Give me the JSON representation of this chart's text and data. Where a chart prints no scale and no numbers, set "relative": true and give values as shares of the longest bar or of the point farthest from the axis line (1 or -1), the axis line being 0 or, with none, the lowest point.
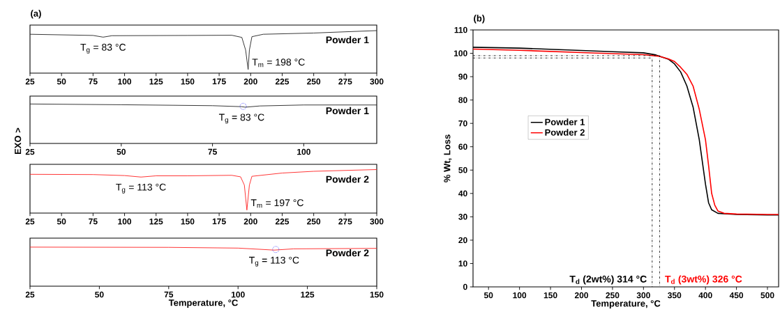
{
  "chart_data": [
    {
      "type": "line",
      "title": "(a)",
      "relative": true,
      "xlim": [
        25,
        300
      ],
      "xticks": [
        25,
        50,
        75,
        100,
        125,
        150,
        175,
        200,
        225,
        250,
        275,
        300
      ],
      "series": [
        {
          "name": "Powder 1",
          "color": "#222222",
          "x": [
            25,
            75,
            83,
            90,
            150,
            185,
            193,
            196,
            198,
            199,
            201,
            210,
            250,
            300
          ],
          "values": [
            0.914,
            0.886,
            0.846,
            0.88,
            0.886,
            0.891,
            0.84,
            0.543,
            0.086,
            0.543,
            0.857,
            0.914,
            0.943,
            1.0
          ]
        }
      ],
      "annotations": [
        {
          "text": "T$_{g}$ = 83 °C",
          "x": 83,
          "y": 0.846
        },
        {
          "text": "T$_{m}$ = 198 °C",
          "x": 198,
          "y": 0.086
        }
      ]
    },
    {
      "type": "line",
      "relative": true,
      "ylabel": "EXO >",
      "xlim": [
        25,
        120
      ],
      "xticks": [
        25,
        50,
        75,
        100
      ],
      "series": [
        {
          "name": "Powder 1",
          "color": "#222222",
          "x": [
            25,
            50,
            75,
            83,
            84,
            88,
            100,
            120
          ],
          "values": [
            1.0,
            0.981,
            0.957,
            0.932,
            0.919,
            0.95,
            0.975,
            0.975
          ]
        },
        {
          "type": "scatter",
          "color": "#3333ff",
          "marker": "circle",
          "line_style": "dotted",
          "x": [
            83.4
          ],
          "values": [
            0.94
          ]
        }
      ],
      "annotations": [
        {
          "text": "T$_{g}$ = 83 °C",
          "x": 83,
          "y": 0.919
        }
      ]
    },
    {
      "type": "line",
      "relative": true,
      "xlim": [
        25,
        300
      ],
      "xticks": [
        25,
        50,
        75,
        100,
        125,
        150,
        175,
        200,
        225,
        250,
        275,
        300
      ],
      "series": [
        {
          "name": "Powder 2",
          "color": "#ff2020",
          "x": [
            25,
            75,
            100,
            113,
            125,
            150,
            185,
            192,
            195,
            197,
            199,
            201,
            225,
            250,
            300
          ],
          "values": [
            0.891,
            0.885,
            0.862,
            0.828,
            0.856,
            0.856,
            0.868,
            0.833,
            0.644,
            0.069,
            0.644,
            0.845,
            0.92,
            0.96,
            1.0
          ]
        }
      ],
      "annotations": [
        {
          "text": "T$_{g}$ = 113 °C",
          "x": 113,
          "y": 0.828
        },
        {
          "text": "T$_{m}$ = 197 °C",
          "x": 197,
          "y": 0.069
        }
      ]
    },
    {
      "type": "line",
      "relative": true,
      "xlabel": "Temperature, °C",
      "xlim": [
        25,
        150
      ],
      "xticks": [
        25,
        50,
        75,
        100,
        125,
        150
      ],
      "series": [
        {
          "name": "Powder 2",
          "color": "#ff2020",
          "x": [
            25,
            75,
            100,
            113,
            120,
            150
          ],
          "values": [
            1.0,
            0.994,
            0.975,
            0.924,
            0.956,
            0.968
          ]
        },
        {
          "type": "scatter",
          "color": "#3333ff",
          "marker": "circle",
          "line_style": "dotted",
          "x": [
            113.6
          ],
          "values": [
            0.94
          ]
        }
      ],
      "annotations": [
        {
          "text": "T$_{g}$ = 113 °C",
          "x": 113,
          "y": 0.924
        }
      ]
    },
    {
      "type": "line",
      "title": "(b)",
      "xlabel": "Temperature, °C",
      "ylabel": "% Wt, Loss",
      "legend": "left",
      "xlim": [
        25,
        518
      ],
      "xticks": [
        50,
        100,
        150,
        200,
        250,
        300,
        350,
        400,
        450,
        500
      ],
      "ylim": [
        0,
        110
      ],
      "yticks": [
        0,
        10,
        20,
        30,
        40,
        50,
        60,
        70,
        80,
        90,
        100,
        110
      ],
      "series": [
        {
          "name": "Powder 1",
          "color": "#000000",
          "x": [
            25,
            100,
            200,
            250,
            300,
            320,
            340,
            350,
            360,
            370,
            380,
            390,
            400,
            405,
            410,
            420,
            450,
            500,
            518
          ],
          "values": [
            102.6,
            102.2,
            101.2,
            100.7,
            100.2,
            99.3,
            97.5,
            95.5,
            92,
            86,
            77,
            63,
            44,
            36,
            33,
            31.5,
            31,
            30.8,
            30.8
          ]
        },
        {
          "name": "Powder 2",
          "color": "#ff0000",
          "x": [
            25,
            100,
            200,
            300,
            326,
            340,
            350,
            360,
            370,
            380,
            390,
            400,
            405,
            410,
            415,
            420,
            430,
            450,
            500,
            518
          ],
          "values": [
            101.8,
            101.3,
            100.3,
            99.4,
            98.7,
            97.6,
            96.5,
            94,
            91,
            86,
            76,
            63,
            52,
            40,
            35,
            32.5,
            31.5,
            31.2,
            31,
            31
          ]
        },
        {
          "color": "#000000",
          "line_style": "dashdot",
          "x": [
            25,
            314,
            314
          ],
          "values": [
            98,
            98,
            0
          ]
        },
        {
          "color": "#000000",
          "line_style": "dashdot",
          "x": [
            25,
            326,
            326
          ],
          "values": [
            99,
            99,
            0
          ]
        }
      ],
      "annotations": [
        "T$_{d}$ (2wt%) 314 °C",
        "T$_{d}$ (3wt%) 326 °C"
      ]
    }
  ]
}
